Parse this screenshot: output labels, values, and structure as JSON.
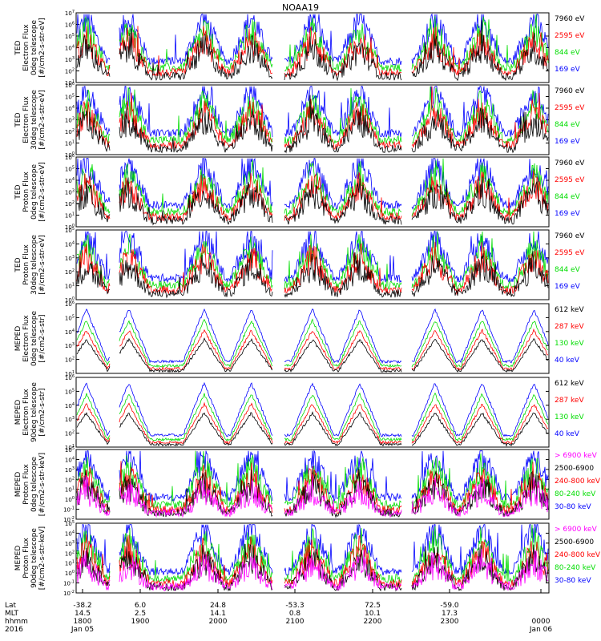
{
  "title": "NOAA19",
  "colors": {
    "black": "#000000",
    "red": "#ff0000",
    "green": "#00dd00",
    "blue": "#0000ff",
    "magenta": "#ff00ff"
  },
  "chart_data": [
    {
      "type": "line",
      "ylog": [
        1,
        7
      ],
      "ylabel": [
        "TED",
        "Electron Flux",
        "0deg telescope",
        "[#/cm2-s-str-eV]"
      ],
      "legend": [
        {
          "name": "7960 eV",
          "color": "black"
        },
        {
          "name": "2595 eV",
          "color": "red"
        },
        {
          "name": "844 eV",
          "color": "green"
        },
        {
          "name": "169 eV",
          "color": "blue"
        }
      ]
    },
    {
      "type": "line",
      "ylog": [
        0,
        6
      ],
      "ylabel": [
        "TED",
        "Electron Flux",
        "30deg telescope",
        "[#/cm2-s-str-eV]"
      ],
      "legend": [
        {
          "name": "7960 eV",
          "color": "black"
        },
        {
          "name": "2595 eV",
          "color": "red"
        },
        {
          "name": "844 eV",
          "color": "green"
        },
        {
          "name": "169 eV",
          "color": "blue"
        }
      ]
    },
    {
      "type": "line",
      "ylog": [
        0,
        6
      ],
      "ylabel": [
        "TED",
        "Proton Flux",
        "0deg telescope",
        "[#/cm2-s-str-eV]"
      ],
      "legend": [
        {
          "name": "7960 eV",
          "color": "black"
        },
        {
          "name": "2595 eV",
          "color": "red"
        },
        {
          "name": "844 eV",
          "color": "green"
        },
        {
          "name": "169 eV",
          "color": "blue"
        }
      ]
    },
    {
      "type": "line",
      "ylog": [
        0,
        5
      ],
      "ylabel": [
        "TED",
        "Proton Flux",
        "30deg telescope",
        "[#/cm2-s-str-eV]"
      ],
      "legend": [
        {
          "name": "7960 eV",
          "color": "black"
        },
        {
          "name": "2595 eV",
          "color": "red"
        },
        {
          "name": "844 eV",
          "color": "green"
        },
        {
          "name": "169 eV",
          "color": "blue"
        }
      ]
    },
    {
      "type": "line",
      "ylog": [
        1,
        6
      ],
      "ylabel": [
        "MEPED",
        "Electron Flux",
        "0deg telescope",
        "[#/cm2-s-str]"
      ],
      "legend": [
        {
          "name": "612 keV",
          "color": "black"
        },
        {
          "name": "287 keV",
          "color": "red"
        },
        {
          "name": "130 keV",
          "color": "green"
        },
        {
          "name": "40 keV",
          "color": "blue"
        }
      ]
    },
    {
      "type": "line",
      "ylog": [
        1,
        6
      ],
      "ylabel": [
        "MEPED",
        "Electron Flux",
        "90deg telescope",
        "[#/cm2-s-str]"
      ],
      "legend": [
        {
          "name": "612 keV",
          "color": "black"
        },
        {
          "name": "287 keV",
          "color": "red"
        },
        {
          "name": "130 keV",
          "color": "green"
        },
        {
          "name": "40 keV",
          "color": "blue"
        }
      ]
    },
    {
      "type": "line",
      "ylog": [
        -2,
        5
      ],
      "ylabel": [
        "MEPED",
        "Proton Flux",
        "0deg telescope",
        "[#/cm2-s-str-keV]"
      ],
      "legend": [
        {
          "name": "> 6900 keV",
          "color": "magenta"
        },
        {
          "name": "2500-6900",
          "color": "black"
        },
        {
          "name": "240-800 keV",
          "color": "red"
        },
        {
          "name": "80-240 keV",
          "color": "green"
        },
        {
          "name": "30-80 keV",
          "color": "blue"
        }
      ]
    },
    {
      "type": "line",
      "ylog": [
        -2,
        5
      ],
      "ylabel": [
        "MEPED",
        "Proton Flux",
        "90deg telescope",
        "[#/cm2-s-str-keV]"
      ],
      "legend": [
        {
          "name": "> 6900 keV",
          "color": "magenta"
        },
        {
          "name": "2500-6900",
          "color": "black"
        },
        {
          "name": "240-800 keV",
          "color": "red"
        },
        {
          "name": "80-240 keV",
          "color": "green"
        },
        {
          "name": "30-80 keV",
          "color": "blue"
        }
      ]
    }
  ],
  "xaxis": {
    "row_labels": [
      "Lat",
      "MLT",
      "hhmm",
      "2016"
    ],
    "ticks": [
      {
        "lat": "-38.2",
        "mlt": "14.5",
        "hhmm": "1800",
        "date": "Jan 05"
      },
      {
        "lat": "6.0",
        "mlt": "2.5",
        "hhmm": "1900",
        "date": ""
      },
      {
        "lat": "24.8",
        "mlt": "14.1",
        "hhmm": "2000",
        "date": ""
      },
      {
        "lat": "-53.3",
        "mlt": "0.8",
        "hhmm": "2100",
        "date": ""
      },
      {
        "lat": "72.5",
        "mlt": "10.1",
        "hhmm": "2200",
        "date": ""
      },
      {
        "lat": "-59.0",
        "mlt": "17.3",
        "hhmm": "2300",
        "date": ""
      },
      {
        "lat": "",
        "mlt": "",
        "hhmm": "0000",
        "date": "Jan 06"
      }
    ]
  }
}
